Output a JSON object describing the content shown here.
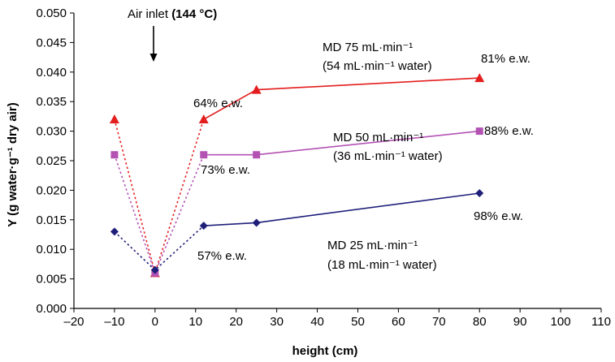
{
  "chart_data": {
    "type": "scatter",
    "xlabel": "height (cm)",
    "ylabel": "Y (g water·g⁻¹ dry air)",
    "xlim": [
      -20,
      110
    ],
    "ylim": [
      0,
      0.05
    ],
    "xticks": [
      "–20",
      "–10",
      "0",
      "10",
      "20",
      "30",
      "40",
      "50",
      "60",
      "70",
      "80",
      "90",
      "100",
      "110"
    ],
    "yticks": [
      "0.000",
      "0.005",
      "0.010",
      "0.015",
      "0.020",
      "0.025",
      "0.030",
      "0.035",
      "0.040",
      "0.045",
      "0.050"
    ],
    "grid": false,
    "series": [
      {
        "label_line1": "MD 75 mL·min⁻¹",
        "label_line2": "(54 mL·min⁻¹ water)",
        "color": "#e41e1e",
        "marker": "triangle",
        "dotted": [
          {
            "x": -10,
            "y": 0.032
          },
          {
            "x": 0,
            "y": 0.006
          },
          {
            "x": 12,
            "y": 0.032
          }
        ],
        "solid": [
          {
            "x": 12,
            "y": 0.032
          },
          {
            "x": 25,
            "y": 0.037
          },
          {
            "x": 80,
            "y": 0.039
          }
        ]
      },
      {
        "label_line1": "MD 50 mL·min⁻¹",
        "label_line2": "(36 mL·min⁻¹ water)",
        "color": "#b452b4",
        "marker": "square",
        "dotted": [
          {
            "x": -10,
            "y": 0.026
          },
          {
            "x": 0,
            "y": 0.006
          },
          {
            "x": 12,
            "y": 0.026
          }
        ],
        "solid": [
          {
            "x": 12,
            "y": 0.026
          },
          {
            "x": 25,
            "y": 0.026
          },
          {
            "x": 80,
            "y": 0.03
          }
        ]
      },
      {
        "label_line1": "MD 25 mL·min⁻¹",
        "label_line2": "(18 mL·min⁻¹ water)",
        "color": "#1f1f7a",
        "marker": "diamond",
        "dotted": [
          {
            "x": -10,
            "y": 0.013
          },
          {
            "x": 0,
            "y": 0.0065
          },
          {
            "x": 12,
            "y": 0.014
          }
        ],
        "solid": [
          {
            "x": 12,
            "y": 0.014
          },
          {
            "x": 25,
            "y": 0.0145
          },
          {
            "x": 80,
            "y": 0.0195
          }
        ]
      }
    ],
    "annotations": {
      "air_inlet_text": "Air inlet ",
      "air_inlet_temp": "(144 °C)",
      "ew_md75_start": "64% e.w.",
      "ew_md75_end": "81% e.w.",
      "ew_md50_start": "73% e.w.",
      "ew_md50_end": "88% e.w.",
      "ew_md25_start": "57% e.w.",
      "ew_md25_end": "98% e.w."
    }
  }
}
